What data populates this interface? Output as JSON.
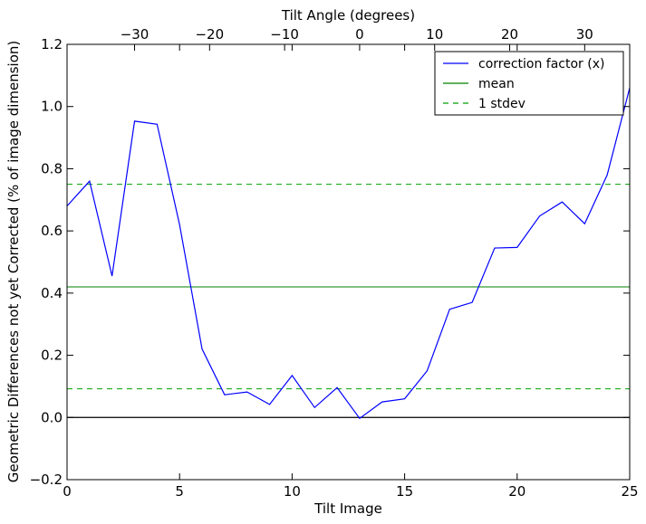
{
  "chart_data": {
    "type": "line",
    "xlabel": "Tilt Image",
    "ylabel": "Geometric Differences not yet Corrected (% of image dimension)",
    "top_xlabel": "Tilt Angle (degrees)",
    "xlim": [
      0,
      25
    ],
    "ylim": [
      -0.2,
      1.2
    ],
    "top_xlim": [
      -39,
      36
    ],
    "x_ticks": [
      0,
      5,
      10,
      15,
      20,
      25
    ],
    "y_ticks": [
      -0.2,
      0.0,
      0.2,
      0.4,
      0.6,
      0.8,
      1.0,
      1.2
    ],
    "top_ticks": [
      -30,
      -20,
      -10,
      0,
      10,
      20,
      30
    ],
    "x_tick_labels": [
      "0",
      "5",
      "10",
      "15",
      "20",
      "25"
    ],
    "y_tick_labels": [
      "−0.2",
      "0.0",
      "0.2",
      "0.4",
      "0.6",
      "0.8",
      "1.0",
      "1.2"
    ],
    "top_tick_labels": [
      "−30",
      "−20",
      "−10",
      "0",
      "10",
      "20",
      "30"
    ],
    "series": [
      {
        "name": "correction factor (x)",
        "color": "#0000ff",
        "style": "solid",
        "x": [
          0,
          1,
          2,
          3,
          4,
          5,
          6,
          7,
          8,
          9,
          10,
          11,
          12,
          13,
          14,
          15,
          16,
          17,
          18,
          19,
          20,
          21,
          22,
          23,
          24,
          25
        ],
        "y": [
          0.68,
          0.76,
          0.455,
          0.953,
          0.943,
          0.62,
          0.22,
          0.073,
          0.082,
          0.042,
          0.135,
          0.032,
          0.096,
          -0.003,
          0.05,
          0.06,
          0.15,
          0.348,
          0.37,
          0.545,
          0.547,
          0.648,
          0.693,
          0.623,
          0.78,
          1.06
        ]
      },
      {
        "name": "mean",
        "color": "#008000",
        "style": "solid",
        "value": 0.42
      },
      {
        "name": "1 stdev",
        "color": "#008000",
        "style": "dashed",
        "values": [
          0.75,
          0.092
        ]
      }
    ],
    "reference_line": {
      "value": 0.0,
      "color": "#000000"
    },
    "legend_position": "top-right",
    "grid": false
  }
}
